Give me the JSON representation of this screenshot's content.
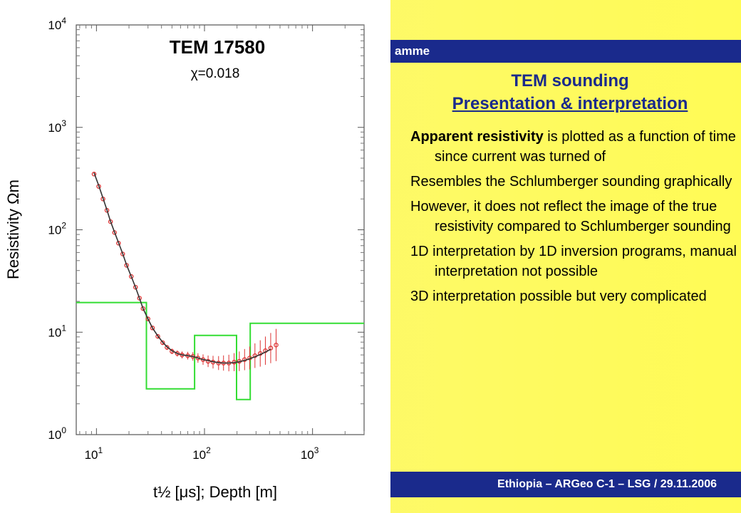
{
  "slide": {
    "header_fragment": "amme",
    "title_line1": "TEM sounding",
    "title_line2": "Presentation & interpretation",
    "footer": "Ethiopia – ARGeo C-1 – LSG / 29.11.2006",
    "bullets": [
      {
        "bold": "Apparent resistivity",
        "text": " is plotted as a function of time since current was turned of"
      },
      {
        "bold": "",
        "text": "Resembles the Schlumberger sounding graphically"
      },
      {
        "bold": "",
        "text": "However, it does not reflect the image of the true resistivity compared to Schlumberger sounding"
      },
      {
        "bold": "",
        "text": "1D interpretation by 1D inversion programs, manual interpretation not possible"
      },
      {
        "bold": "",
        "text": "3D interpretation possible but very complicated"
      }
    ]
  },
  "colors": {
    "bar": "#1a2a8c",
    "model": "#33dd33",
    "data": "#dd3333",
    "fit": "#333333"
  },
  "chart_data": {
    "type": "line",
    "title": "TEM 17580",
    "subtitle": "χ=0.018",
    "xlabel": "t½ [μs]; Depth [m]",
    "ylabel": "Resistivity Ωm",
    "x_scale": "log",
    "y_scale": "log",
    "xlim": [
      6.5,
      3000
    ],
    "ylim": [
      1,
      10000
    ],
    "x_ticks": [
      {
        "value": 10,
        "base": "10",
        "exp": "1"
      },
      {
        "value": 100,
        "base": "10",
        "exp": "2"
      },
      {
        "value": 1000,
        "base": "10",
        "exp": "3"
      }
    ],
    "y_ticks": [
      {
        "value": 1,
        "base": "10",
        "exp": "0"
      },
      {
        "value": 10,
        "base": "10",
        "exp": "1"
      },
      {
        "value": 100,
        "base": "10",
        "exp": "2"
      },
      {
        "value": 1000,
        "base": "10",
        "exp": "3"
      },
      {
        "value": 10000,
        "base": "10",
        "exp": "4"
      }
    ],
    "series": [
      {
        "kind": "model_step",
        "x": [
          6.5,
          29,
          29,
          81,
          81,
          198,
          198,
          265,
          265,
          3000
        ],
        "y": [
          19.5,
          19.5,
          2.8,
          2.8,
          9.3,
          9.3,
          2.2,
          2.2,
          12.2,
          12.2
        ]
      },
      {
        "kind": "data",
        "x": [
          9.5,
          10.5,
          11.5,
          12.5,
          13.5,
          14.7,
          16,
          17.5,
          19,
          21,
          23,
          25,
          27,
          30,
          33,
          37,
          41,
          45,
          50,
          56,
          62,
          70,
          78,
          87,
          97,
          108,
          120,
          135,
          150,
          168,
          188,
          210,
          235,
          262,
          293,
          328,
          366,
          410,
          460
        ],
        "y": [
          350,
          265,
          200,
          155,
          120,
          94,
          74,
          58,
          45,
          35,
          27.5,
          21.5,
          17,
          13.5,
          11,
          9.1,
          7.9,
          7.1,
          6.5,
          6.2,
          6.0,
          5.9,
          5.8,
          5.6,
          5.4,
          5.2,
          5.1,
          5.0,
          5.0,
          5.0,
          5.1,
          5.2,
          5.4,
          5.6,
          5.9,
          6.2,
          6.6,
          7.0,
          7.5
        ]
      },
      {
        "kind": "fit",
        "x": [
          9.5,
          10.5,
          11.5,
          12.5,
          13.5,
          14.7,
          16,
          17.5,
          19,
          21,
          23,
          25,
          27,
          30,
          33,
          37,
          41,
          45,
          50,
          56,
          62,
          70,
          78,
          87,
          97,
          108,
          120,
          135,
          150,
          168,
          188,
          210,
          235,
          262,
          293,
          328,
          366,
          410
        ],
        "y": [
          360,
          270,
          203,
          156,
          121,
          95,
          75,
          58.5,
          45.5,
          35,
          27.5,
          21.5,
          17,
          13.5,
          11,
          9.2,
          8.0,
          7.2,
          6.6,
          6.2,
          6.0,
          5.9,
          5.8,
          5.6,
          5.4,
          5.3,
          5.15,
          5.05,
          5.0,
          5.0,
          5.05,
          5.15,
          5.3,
          5.5,
          5.75,
          6.05,
          6.4,
          6.8
        ]
      }
    ]
  }
}
